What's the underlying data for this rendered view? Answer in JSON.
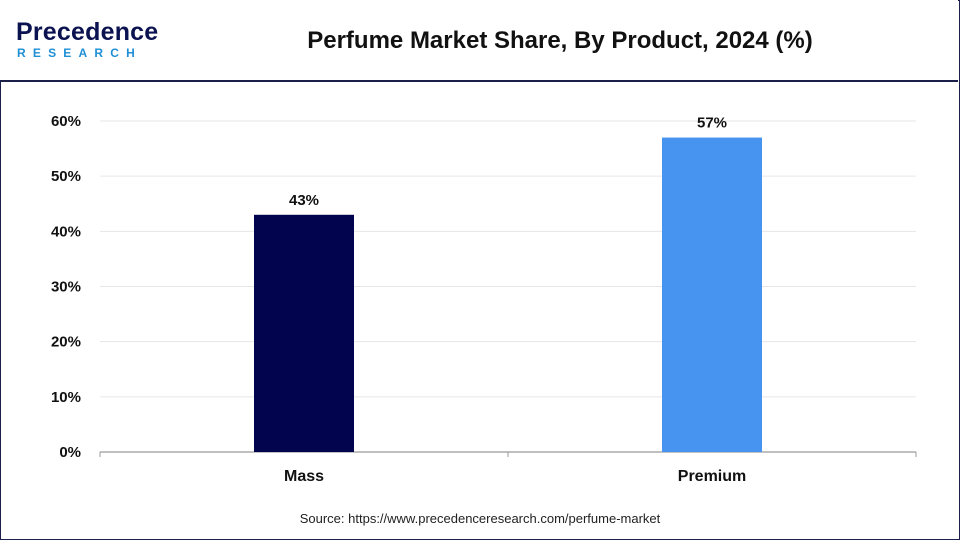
{
  "header": {
    "logo_text_top": "Precedence",
    "logo_text_bottom": "RESEARCH",
    "title": "Perfume Market Share, By Product, 2024 (%)"
  },
  "source": "Source: https://www.precedenceresearch.com/perfume-market",
  "colors": {
    "brand_navy": "#0b1250",
    "brand_blue": "#1f8fd6",
    "mass_bar": "#03044e",
    "premium_bar": "#4794f0"
  },
  "chart_data": {
    "type": "bar",
    "title": "Perfume Market Share, By Product, 2024 (%)",
    "categories": [
      "Mass",
      "Premium"
    ],
    "values": [
      43,
      57
    ],
    "value_labels": [
      "43%",
      "57%"
    ],
    "bar_colors": [
      "#03044e",
      "#4794f0"
    ],
    "ylim": [
      0,
      60
    ],
    "yticks": [
      0,
      10,
      20,
      30,
      40,
      50,
      60
    ],
    "ytick_labels": [
      "0%",
      "10%",
      "20%",
      "30%",
      "40%",
      "50%",
      "60%"
    ],
    "xlabel": "",
    "ylabel": "",
    "grid": true,
    "legend": false
  }
}
